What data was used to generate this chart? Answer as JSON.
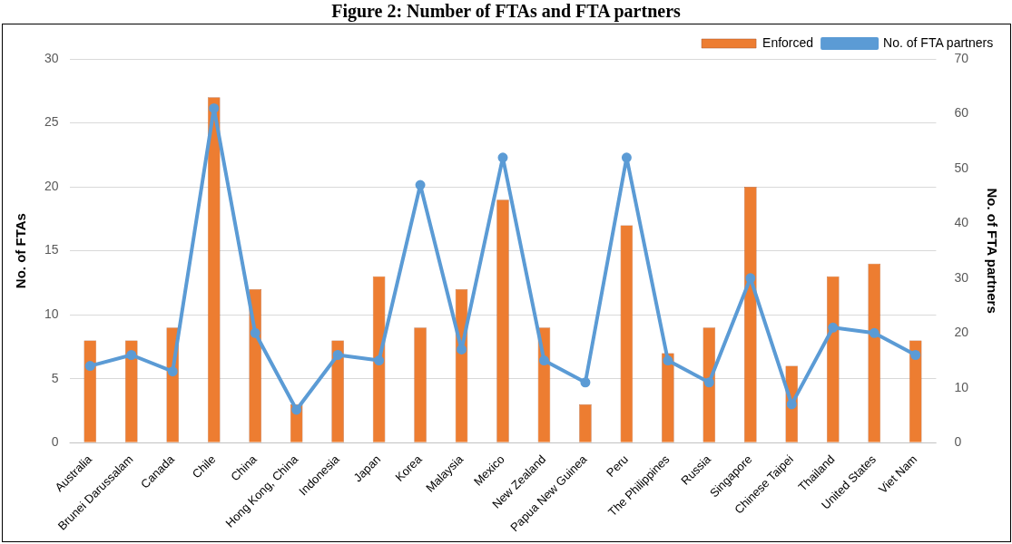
{
  "chart_data": {
    "type": "bar",
    "title": "Figure 2: Number of FTAs and FTA partners",
    "ylabel": "No. of FTAs",
    "y2label": "No. of FTA partners",
    "categories": [
      "Australia",
      "Brunei Darussalam",
      "Canada",
      "Chile",
      "China",
      "Hong Kong, China",
      "Indonesia",
      "Japan",
      "Korea",
      "Malaysia",
      "Mexico",
      "New Zealand",
      "Papua New Guinea",
      "Peru",
      "The Philippines",
      "Russia",
      "Singapore",
      "Chinese Taipei",
      "Thailand",
      "United States",
      "Viet Nam"
    ],
    "series": [
      {
        "name": "Enforced",
        "color": "#ed7d31",
        "values": [
          8,
          8,
          9,
          27,
          12,
          3,
          8,
          13,
          9,
          12,
          19,
          9,
          3,
          17,
          7,
          9,
          20,
          6,
          13,
          14,
          8
        ]
      },
      {
        "name": "No. of FTA partners",
        "type": "line",
        "axis": "y2",
        "color": "#5b9bd5",
        "values": [
          14,
          16,
          13,
          61,
          20,
          6,
          16,
          15,
          47,
          17,
          52,
          15,
          11,
          52,
          15,
          11,
          30,
          7,
          21,
          20,
          16
        ]
      }
    ],
    "ylim": [
      0,
      30
    ],
    "yticks": [
      0,
      5,
      10,
      15,
      20,
      25,
      30
    ],
    "y2lim": [
      0,
      70
    ],
    "y2ticks": [
      0,
      10,
      20,
      30,
      40,
      50,
      60,
      70
    ],
    "grid": "y",
    "legend": "top right",
    "marker": "circle"
  }
}
